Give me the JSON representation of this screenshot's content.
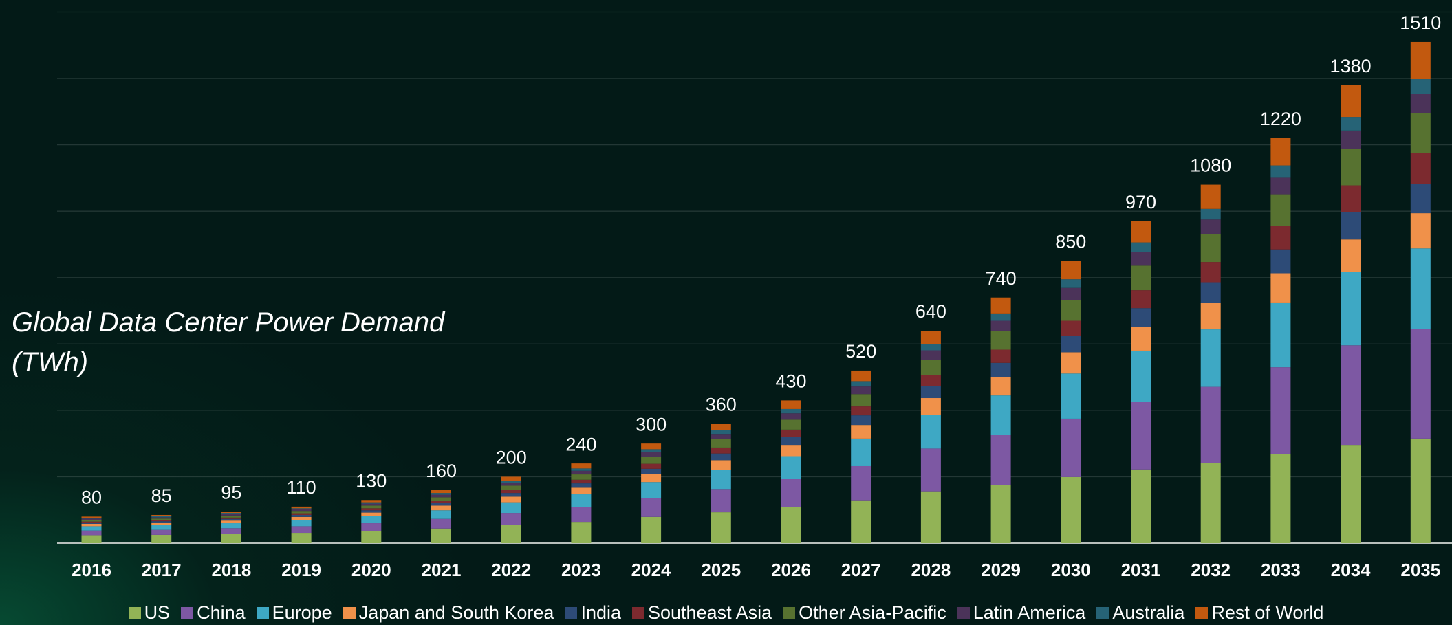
{
  "chart_data": {
    "type": "stacked_bar",
    "annotation": "Global Data Center Power Demand (TWh)",
    "categories": [
      "2016",
      "2017",
      "2018",
      "2019",
      "2020",
      "2021",
      "2022",
      "2023",
      "2024",
      "2025",
      "2026",
      "2027",
      "2028",
      "2029",
      "2030",
      "2031",
      "2032",
      "2033",
      "2034",
      "2035"
    ],
    "totals": [
      80,
      85,
      95,
      110,
      130,
      160,
      200,
      240,
      300,
      360,
      430,
      520,
      640,
      740,
      850,
      970,
      1080,
      1220,
      1380,
      1510
    ],
    "series": [
      {
        "name": "US",
        "color": "#92b356",
        "values": [
          24,
          25,
          28,
          31,
          37,
          44,
          54,
          64,
          79,
          93,
          109,
          129,
          156,
          176,
          199,
          222,
          242,
          268,
          296,
          315
        ]
      },
      {
        "name": "China",
        "color": "#7d58a3",
        "values": [
          14,
          15,
          17,
          20,
          23,
          29,
          37,
          45,
          57,
          70,
          84,
          103,
          129,
          151,
          176,
          203,
          229,
          262,
          300,
          331
        ]
      },
      {
        "name": "Europe",
        "color": "#3ea8c4",
        "values": [
          13,
          14,
          15,
          18,
          21,
          26,
          32,
          38,
          48,
          58,
          69,
          83,
          102,
          118,
          136,
          155,
          173,
          195,
          221,
          242
        ]
      },
      {
        "name": "Japan and South Korea",
        "color": "#f0914a",
        "values": [
          7,
          8,
          8,
          10,
          11,
          14,
          17,
          20,
          24,
          29,
          34,
          41,
          50,
          56,
          64,
          72,
          79,
          88,
          98,
          106
        ]
      },
      {
        "name": "India",
        "color": "#2d4b77",
        "values": [
          4,
          4,
          5,
          6,
          7,
          8,
          11,
          13,
          16,
          20,
          24,
          29,
          36,
          42,
          49,
          56,
          63,
          72,
          82,
          89
        ]
      },
      {
        "name": "Southeast Asia",
        "color": "#7c2a2f",
        "values": [
          3,
          3,
          4,
          5,
          6,
          7,
          9,
          11,
          15,
          18,
          22,
          27,
          34,
          40,
          46,
          54,
          61,
          71,
          81,
          92
        ]
      },
      {
        "name": "Other Asia-Pacific",
        "color": "#577230",
        "values": [
          5,
          5,
          6,
          7,
          8,
          10,
          13,
          16,
          21,
          25,
          30,
          37,
          46,
          55,
          63,
          74,
          83,
          95,
          109,
          120
        ]
      },
      {
        "name": "Latin America",
        "color": "#4b3359",
        "values": [
          4,
          4,
          5,
          5,
          6,
          8,
          9,
          11,
          14,
          16,
          19,
          23,
          28,
          32,
          36,
          41,
          45,
          50,
          56,
          58
        ]
      },
      {
        "name": "Australia",
        "color": "#266376",
        "values": [
          2,
          3,
          3,
          3,
          4,
          5,
          6,
          7,
          9,
          11,
          13,
          16,
          19,
          22,
          26,
          29,
          32,
          37,
          41,
          45
        ]
      },
      {
        "name": "Rest of World",
        "color": "#c2590f",
        "values": [
          4,
          4,
          4,
          5,
          7,
          9,
          12,
          15,
          17,
          20,
          26,
          32,
          40,
          48,
          55,
          64,
          73,
          82,
          96,
          112
        ]
      }
    ],
    "ylim": [
      0,
      1600
    ],
    "yticks": [
      0,
      200,
      400,
      600,
      800,
      1000,
      1200,
      1400,
      1600
    ],
    "grid": true
  }
}
